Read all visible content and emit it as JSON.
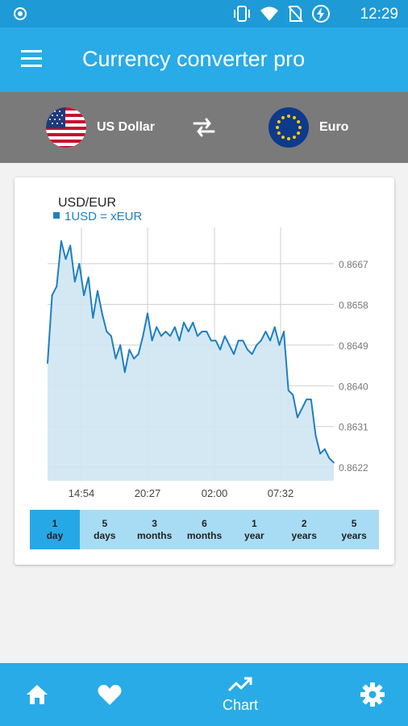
{
  "status_bar": {
    "time": "12:29"
  },
  "app_bar": {
    "title": "Currency converter pro"
  },
  "currency": {
    "from_label": "US Dollar",
    "to_label": "Euro"
  },
  "chart_data": {
    "type": "area",
    "title": "USD/EUR",
    "series": [
      {
        "name": "1USD = xEUR",
        "color": "#1f7fc1",
        "values": [
          0.8645,
          0.866,
          0.8662,
          0.8672,
          0.8668,
          0.8671,
          0.8663,
          0.8667,
          0.866,
          0.8664,
          0.8655,
          0.8661,
          0.8656,
          0.8652,
          0.8651,
          0.8646,
          0.8649,
          0.8643,
          0.8648,
          0.8646,
          0.8647,
          0.8651,
          0.8656,
          0.865,
          0.8653,
          0.8651,
          0.8652,
          0.8651,
          0.8653,
          0.865,
          0.8654,
          0.8652,
          0.8654,
          0.8651,
          0.8652,
          0.8652,
          0.865,
          0.865,
          0.8648,
          0.8651,
          0.8649,
          0.8647,
          0.865,
          0.865,
          0.8648,
          0.8647,
          0.8649,
          0.865,
          0.8652,
          0.865,
          0.8653,
          0.8649,
          0.8652,
          0.8639,
          0.8638,
          0.8633,
          0.8635,
          0.8637,
          0.8637,
          0.8629,
          0.8625,
          0.8626,
          0.8624,
          0.8623
        ]
      }
    ],
    "x_ticks": [
      "14:54",
      "20:27",
      "02:00",
      "07:32"
    ],
    "y_ticks": [
      "0.8667",
      "0.8658",
      "0.8649",
      "0.8640",
      "0.8631",
      "0.8622"
    ],
    "ylim": [
      0.8619,
      0.8675
    ],
    "grid": true,
    "legend": "top-left",
    "fill_color": "#cfe6f3"
  },
  "ranges": [
    {
      "num": "1",
      "unit": "day",
      "active": true
    },
    {
      "num": "5",
      "unit": "days",
      "active": false
    },
    {
      "num": "3",
      "unit": "months",
      "active": false
    },
    {
      "num": "6",
      "unit": "months",
      "active": false
    },
    {
      "num": "1",
      "unit": "year",
      "active": false
    },
    {
      "num": "2",
      "unit": "years",
      "active": false
    },
    {
      "num": "5",
      "unit": "years",
      "active": false
    }
  ],
  "bottom_nav": {
    "chart_label": "Chart",
    "icons": [
      "home-icon",
      "heart-icon",
      "trending-up-icon",
      "gear-icon"
    ]
  },
  "colors": {
    "status_bar": "#1e9ad6",
    "app_bar": "#29abe7",
    "currency_bar": "#7a7a7a",
    "range_bar": "#a8dcf5",
    "range_active": "#27a8e6"
  }
}
